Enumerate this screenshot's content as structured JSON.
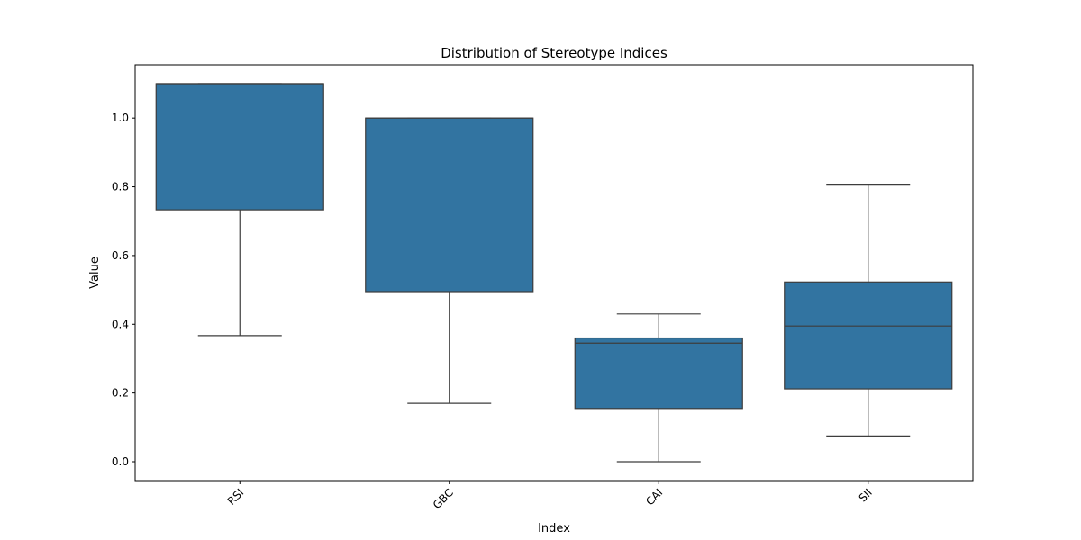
{
  "chart_data": {
    "type": "box",
    "title": "Distribution of Stereotype Indices",
    "xlabel": "Index",
    "ylabel": "Value",
    "ylim": [
      -0.055,
      1.155
    ],
    "yticks": [
      "0.0",
      "0.2",
      "0.4",
      "0.6",
      "0.8",
      "1.0"
    ],
    "categories": [
      "RSI",
      "GBC",
      "CAI",
      "SII"
    ],
    "boxes": [
      {
        "whisker_low": 0.367,
        "q1": 0.733,
        "median": 1.1,
        "q3": 1.1,
        "whisker_high": 1.1
      },
      {
        "whisker_low": 0.17,
        "q1": 0.495,
        "median": 1.0,
        "q3": 1.0,
        "whisker_high": 1.0
      },
      {
        "whisker_low": 0.0,
        "q1": 0.155,
        "median": 0.345,
        "q3": 0.36,
        "whisker_high": 0.43
      },
      {
        "whisker_low": 0.075,
        "q1": 0.212,
        "median": 0.395,
        "q3": 0.523,
        "whisker_high": 0.805
      }
    ],
    "grid": false,
    "legend": "none",
    "box_color": "#3274a1",
    "line_color": "#3d3d3d"
  }
}
